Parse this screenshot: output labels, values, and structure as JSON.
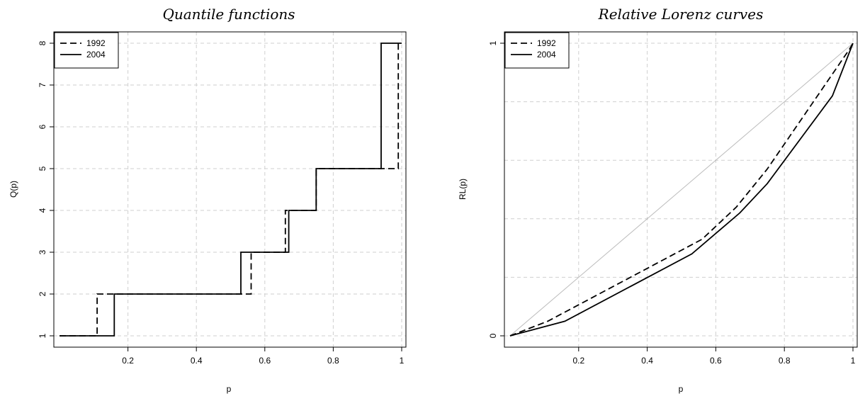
{
  "chart_data": [
    {
      "type": "line",
      "title": "Quantile functions",
      "xlabel": "p",
      "ylabel": "Q(p)",
      "xlim": [
        0.0,
        1.0
      ],
      "ylim": [
        1,
        8
      ],
      "xticks": [
        "0.2",
        "0.4",
        "0.6",
        "0.8",
        "1"
      ],
      "xtick_values": [
        0.2,
        0.4,
        0.6,
        0.8,
        1.0
      ],
      "yticks": [
        "1",
        "2",
        "3",
        "4",
        "5",
        "6",
        "7",
        "8"
      ],
      "ytick_values": [
        1,
        2,
        3,
        4,
        5,
        6,
        7,
        8
      ],
      "grid": true,
      "legend": "top-left",
      "series": [
        {
          "name": "1992",
          "style": "dashed",
          "points": [
            [
              0.0,
              1
            ],
            [
              0.11,
              1
            ],
            [
              0.11,
              2
            ],
            [
              0.56,
              2
            ],
            [
              0.56,
              3
            ],
            [
              0.66,
              3
            ],
            [
              0.66,
              4
            ],
            [
              0.75,
              4
            ],
            [
              0.75,
              5
            ],
            [
              0.99,
              5
            ],
            [
              0.99,
              8
            ],
            [
              1.0,
              8
            ]
          ]
        },
        {
          "name": "2004",
          "style": "solid",
          "points": [
            [
              0.0,
              1
            ],
            [
              0.16,
              1
            ],
            [
              0.16,
              2
            ],
            [
              0.53,
              2
            ],
            [
              0.53,
              3
            ],
            [
              0.67,
              3
            ],
            [
              0.67,
              4
            ],
            [
              0.75,
              4
            ],
            [
              0.75,
              5
            ],
            [
              0.94,
              5
            ],
            [
              0.94,
              8
            ],
            [
              1.0,
              8
            ]
          ]
        }
      ]
    },
    {
      "type": "line",
      "title": "Relative Lorenz curves",
      "xlabel": "p",
      "ylabel": "RL(p)",
      "xlim": [
        0.0,
        1.0
      ],
      "ylim": [
        0,
        1
      ],
      "xticks": [
        "0.2",
        "0.4",
        "0.6",
        "0.8",
        "1"
      ],
      "xtick_values": [
        0.2,
        0.4,
        0.6,
        0.8,
        1.0
      ],
      "yticks": [
        "0",
        "1"
      ],
      "ytick_values": [
        0,
        1
      ],
      "hgrid": [
        0,
        0.2,
        0.4,
        0.6,
        0.8,
        1.0
      ],
      "grid": true,
      "legend": "top-left",
      "reference_line": [
        [
          0,
          0
        ],
        [
          1,
          1
        ]
      ],
      "series": [
        {
          "name": "1992",
          "style": "dashed",
          "points": [
            [
              0.0,
              0.0
            ],
            [
              0.11,
              0.05
            ],
            [
              0.56,
              0.33
            ],
            [
              0.66,
              0.44
            ],
            [
              0.75,
              0.57
            ],
            [
              0.99,
              0.98
            ],
            [
              1.0,
              1.0
            ]
          ]
        },
        {
          "name": "2004",
          "style": "solid",
          "points": [
            [
              0.0,
              0.0
            ],
            [
              0.16,
              0.05
            ],
            [
              0.53,
              0.28
            ],
            [
              0.67,
              0.42
            ],
            [
              0.75,
              0.52
            ],
            [
              0.94,
              0.82
            ],
            [
              1.0,
              1.0
            ]
          ]
        }
      ]
    }
  ]
}
